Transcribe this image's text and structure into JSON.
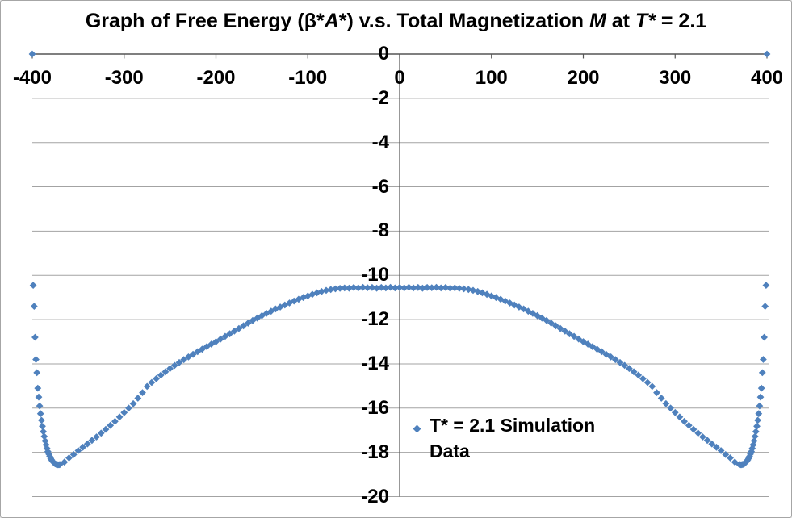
{
  "chart_data": {
    "type": "scatter",
    "title": "Graph of Free Energy (β*A*) v.s. Total Magnetization M at T* = 2.1",
    "title_segments": [
      {
        "text": "Graph of Free Energy (β*",
        "italic": false
      },
      {
        "text": "A",
        "italic": true
      },
      {
        "text": "*) v.s. Total Magnetization ",
        "italic": false
      },
      {
        "text": "M",
        "italic": true
      },
      {
        "text": " at ",
        "italic": false
      },
      {
        "text": "T*",
        "italic": true
      },
      {
        "text": " = 2.1",
        "italic": false
      }
    ],
    "xlabel": "",
    "ylabel": "",
    "x_axis": {
      "min": -400,
      "max": 400,
      "tick_step": 100,
      "position": "top-at-zero",
      "tick_labels": [
        "-400",
        "-300",
        "-200",
        "-100",
        "0",
        "100",
        "200",
        "300",
        "400"
      ]
    },
    "y_axis": {
      "min": -20,
      "max": 0,
      "tick_step": 2,
      "position": "center-at-zero",
      "tick_labels": [
        "0",
        "-2",
        "-4",
        "-6",
        "-8",
        "-10",
        "-12",
        "-14",
        "-16",
        "-18",
        "-20"
      ]
    },
    "grid": "horizontal",
    "legend": {
      "label": "T* = 2.1 Simulation Data",
      "marker": "diamond",
      "position": "inside-bottom-center"
    },
    "series": [
      {
        "name": "T* = 2.1 Simulation Data",
        "marker": "diamond",
        "color": "#4F81BD",
        "points": [
          [
            -400,
            0
          ],
          [
            -399,
            -10.45
          ],
          [
            -398,
            -11.4
          ],
          [
            -397,
            -12.8
          ],
          [
            -396,
            -13.8
          ],
          [
            -395,
            -14.4
          ],
          [
            -394,
            -15.1
          ],
          [
            -393,
            -15.5
          ],
          [
            -392,
            -15.9
          ],
          [
            -391,
            -16.25
          ],
          [
            -390,
            -16.55
          ],
          [
            -389,
            -16.82
          ],
          [
            -388,
            -17.06
          ],
          [
            -387,
            -17.28
          ],
          [
            -386,
            -17.48
          ],
          [
            -385,
            -17.66
          ],
          [
            -384,
            -17.82
          ],
          [
            -383,
            -17.96
          ],
          [
            -382,
            -18.08
          ],
          [
            -381,
            -18.18
          ],
          [
            -380,
            -18.27
          ],
          [
            -379,
            -18.34
          ],
          [
            -378,
            -18.4
          ],
          [
            -377,
            -18.45
          ],
          [
            -376,
            -18.49
          ],
          [
            -375,
            -18.52
          ],
          [
            -374,
            -18.54
          ],
          [
            -373,
            -18.55
          ],
          [
            -372,
            -18.56
          ],
          [
            -371,
            -18.56
          ],
          [
            -370,
            -18.55
          ],
          [
            -365,
            -18.44
          ],
          [
            -360,
            -18.25
          ],
          [
            -355,
            -18.1
          ],
          [
            -350,
            -17.92
          ],
          [
            -345,
            -17.77
          ],
          [
            -340,
            -17.62
          ],
          [
            -335,
            -17.46
          ],
          [
            -330,
            -17.3
          ],
          [
            -325,
            -17.13
          ],
          [
            -320,
            -16.96
          ],
          [
            -315,
            -16.78
          ],
          [
            -310,
            -16.6
          ],
          [
            -305,
            -16.4
          ],
          [
            -300,
            -16.2
          ],
          [
            -295,
            -16.0
          ],
          [
            -290,
            -15.8
          ],
          [
            -285,
            -15.55
          ],
          [
            -280,
            -15.3
          ],
          [
            -275,
            -15.02
          ],
          [
            -270,
            -14.84
          ],
          [
            -265,
            -14.67
          ],
          [
            -260,
            -14.51
          ],
          [
            -255,
            -14.36
          ],
          [
            -250,
            -14.21
          ],
          [
            -245,
            -14.07
          ],
          [
            -240,
            -13.94
          ],
          [
            -235,
            -13.81
          ],
          [
            -230,
            -13.69
          ],
          [
            -225,
            -13.57
          ],
          [
            -220,
            -13.45
          ],
          [
            -215,
            -13.34
          ],
          [
            -210,
            -13.22
          ],
          [
            -205,
            -13.11
          ],
          [
            -200,
            -13.0
          ],
          [
            -195,
            -12.88
          ],
          [
            -190,
            -12.76
          ],
          [
            -185,
            -12.64
          ],
          [
            -180,
            -12.52
          ],
          [
            -175,
            -12.4
          ],
          [
            -170,
            -12.28
          ],
          [
            -165,
            -12.16
          ],
          [
            -160,
            -12.04
          ],
          [
            -155,
            -11.93
          ],
          [
            -150,
            -11.82
          ],
          [
            -145,
            -11.72
          ],
          [
            -140,
            -11.62
          ],
          [
            -135,
            -11.52
          ],
          [
            -130,
            -11.43
          ],
          [
            -125,
            -11.34
          ],
          [
            -120,
            -11.25
          ],
          [
            -115,
            -11.16
          ],
          [
            -110,
            -11.08
          ],
          [
            -105,
            -11.0
          ],
          [
            -100,
            -10.93
          ],
          [
            -95,
            -10.86
          ],
          [
            -90,
            -10.79
          ],
          [
            -85,
            -10.73
          ],
          [
            -80,
            -10.68
          ],
          [
            -75,
            -10.64
          ],
          [
            -70,
            -10.61
          ],
          [
            -65,
            -10.59
          ],
          [
            -60,
            -10.57
          ],
          [
            -55,
            -10.58
          ],
          [
            -50,
            -10.55
          ],
          [
            -45,
            -10.57
          ],
          [
            -40,
            -10.54
          ],
          [
            -35,
            -10.56
          ],
          [
            -30,
            -10.55
          ],
          [
            -25,
            -10.58
          ],
          [
            -20,
            -10.55
          ],
          [
            -15,
            -10.57
          ],
          [
            -10,
            -10.54
          ],
          [
            -5,
            -10.57
          ],
          [
            0,
            -10.55
          ],
          [
            5,
            -10.57
          ],
          [
            10,
            -10.54
          ],
          [
            15,
            -10.57
          ],
          [
            20,
            -10.55
          ],
          [
            25,
            -10.58
          ],
          [
            30,
            -10.55
          ],
          [
            35,
            -10.56
          ],
          [
            40,
            -10.54
          ],
          [
            45,
            -10.57
          ],
          [
            50,
            -10.55
          ],
          [
            55,
            -10.58
          ],
          [
            60,
            -10.57
          ],
          [
            65,
            -10.59
          ],
          [
            70,
            -10.61
          ],
          [
            75,
            -10.64
          ],
          [
            80,
            -10.68
          ],
          [
            85,
            -10.73
          ],
          [
            90,
            -10.79
          ],
          [
            95,
            -10.86
          ],
          [
            100,
            -10.93
          ],
          [
            105,
            -11.0
          ],
          [
            110,
            -11.08
          ],
          [
            115,
            -11.16
          ],
          [
            120,
            -11.25
          ],
          [
            125,
            -11.34
          ],
          [
            130,
            -11.43
          ],
          [
            135,
            -11.52
          ],
          [
            140,
            -11.62
          ],
          [
            145,
            -11.72
          ],
          [
            150,
            -11.82
          ],
          [
            155,
            -11.93
          ],
          [
            160,
            -12.04
          ],
          [
            165,
            -12.16
          ],
          [
            170,
            -12.28
          ],
          [
            175,
            -12.4
          ],
          [
            180,
            -12.52
          ],
          [
            185,
            -12.64
          ],
          [
            190,
            -12.76
          ],
          [
            195,
            -12.88
          ],
          [
            200,
            -13.0
          ],
          [
            205,
            -13.11
          ],
          [
            210,
            -13.22
          ],
          [
            215,
            -13.34
          ],
          [
            220,
            -13.45
          ],
          [
            225,
            -13.57
          ],
          [
            230,
            -13.69
          ],
          [
            235,
            -13.81
          ],
          [
            240,
            -13.94
          ],
          [
            245,
            -14.07
          ],
          [
            250,
            -14.21
          ],
          [
            255,
            -14.36
          ],
          [
            260,
            -14.51
          ],
          [
            265,
            -14.67
          ],
          [
            270,
            -14.84
          ],
          [
            275,
            -15.02
          ],
          [
            280,
            -15.3
          ],
          [
            285,
            -15.55
          ],
          [
            290,
            -15.8
          ],
          [
            295,
            -16.0
          ],
          [
            300,
            -16.2
          ],
          [
            305,
            -16.4
          ],
          [
            310,
            -16.6
          ],
          [
            315,
            -16.78
          ],
          [
            320,
            -16.96
          ],
          [
            325,
            -17.13
          ],
          [
            330,
            -17.3
          ],
          [
            335,
            -17.46
          ],
          [
            340,
            -17.62
          ],
          [
            345,
            -17.77
          ],
          [
            350,
            -17.92
          ],
          [
            355,
            -18.1
          ],
          [
            360,
            -18.25
          ],
          [
            365,
            -18.44
          ],
          [
            370,
            -18.55
          ],
          [
            371,
            -18.56
          ],
          [
            372,
            -18.56
          ],
          [
            373,
            -18.55
          ],
          [
            374,
            -18.54
          ],
          [
            375,
            -18.52
          ],
          [
            376,
            -18.49
          ],
          [
            377,
            -18.45
          ],
          [
            378,
            -18.4
          ],
          [
            379,
            -18.34
          ],
          [
            380,
            -18.27
          ],
          [
            381,
            -18.18
          ],
          [
            382,
            -18.08
          ],
          [
            383,
            -17.96
          ],
          [
            384,
            -17.82
          ],
          [
            385,
            -17.66
          ],
          [
            386,
            -17.48
          ],
          [
            387,
            -17.28
          ],
          [
            388,
            -17.06
          ],
          [
            389,
            -16.82
          ],
          [
            390,
            -16.55
          ],
          [
            391,
            -16.25
          ],
          [
            392,
            -15.9
          ],
          [
            393,
            -15.5
          ],
          [
            394,
            -15.1
          ],
          [
            395,
            -14.4
          ],
          [
            396,
            -13.8
          ],
          [
            397,
            -12.8
          ],
          [
            398,
            -11.4
          ],
          [
            399,
            -10.45
          ],
          [
            400,
            0
          ]
        ]
      }
    ]
  },
  "style": {
    "marker_color": "#4F81BD",
    "gridline_color": "#a3a3a3",
    "axis_color": "#555555",
    "text_color": "#000000",
    "border_color": "#a6a6a6",
    "background": "#ffffff"
  }
}
